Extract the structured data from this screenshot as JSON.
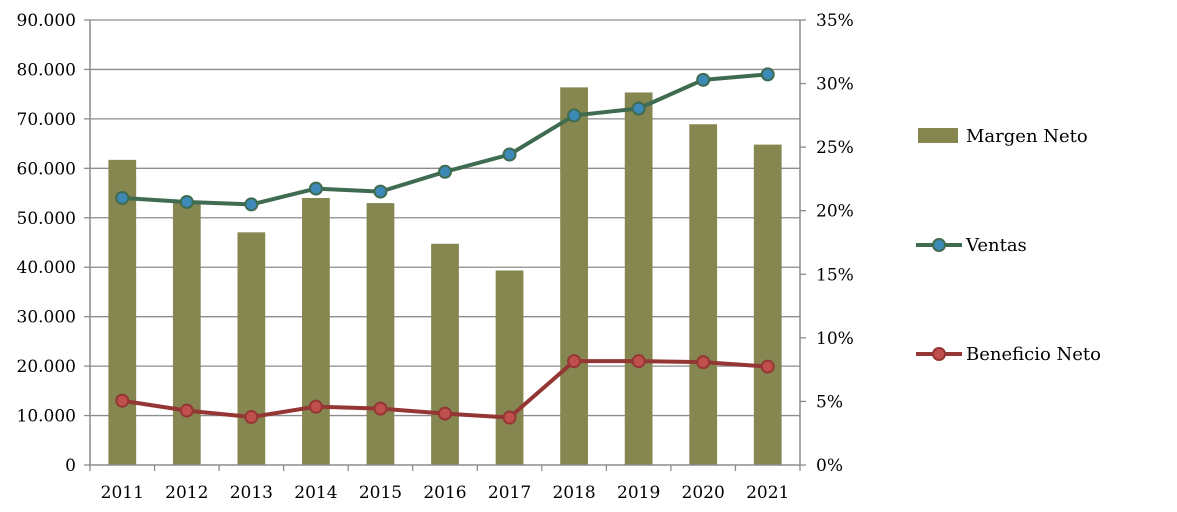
{
  "chart_data": {
    "type": "bar+line",
    "title": "",
    "categories": [
      "2011",
      "2012",
      "2013",
      "2014",
      "2015",
      "2016",
      "2017",
      "2018",
      "2019",
      "2020",
      "2021"
    ],
    "y_left": {
      "range": [
        0,
        90000
      ],
      "ticks": [
        0,
        10000,
        20000,
        30000,
        40000,
        50000,
        60000,
        70000,
        80000,
        90000
      ],
      "tick_labels": [
        "0",
        "10.000",
        "20.000",
        "30.000",
        "40.000",
        "50.000",
        "60.000",
        "70.000",
        "80.000",
        "90.000"
      ]
    },
    "y_right": {
      "range": [
        0,
        0.35
      ],
      "ticks": [
        0,
        0.05,
        0.1,
        0.15,
        0.2,
        0.25,
        0.3,
        0.35
      ],
      "tick_labels": [
        "0%",
        "5%",
        "10%",
        "15%",
        "20%",
        "25%",
        "30%",
        "35%"
      ]
    },
    "grid": "horizontal",
    "legend_position": "right",
    "series": [
      {
        "name": "Margen Neto",
        "kind": "bar",
        "axis": "right",
        "color": "#868651",
        "values": [
          0.24,
          0.208,
          0.183,
          0.21,
          0.206,
          0.174,
          0.153,
          0.297,
          0.293,
          0.268,
          0.252
        ]
      },
      {
        "name": "Ventas",
        "kind": "line",
        "axis": "left",
        "color": "#3f6c51",
        "marker_color": "#3d8ab8",
        "values": [
          54000,
          53200,
          52700,
          55900,
          55300,
          59300,
          62800,
          70700,
          72100,
          77900,
          79000
        ]
      },
      {
        "name": "Beneficio Neto",
        "kind": "line",
        "axis": "left",
        "color": "#943634",
        "marker_color": "#c0504d",
        "values": [
          13000,
          11000,
          9700,
          11800,
          11400,
          10400,
          9600,
          21000,
          21000,
          20800,
          19900
        ]
      }
    ]
  }
}
